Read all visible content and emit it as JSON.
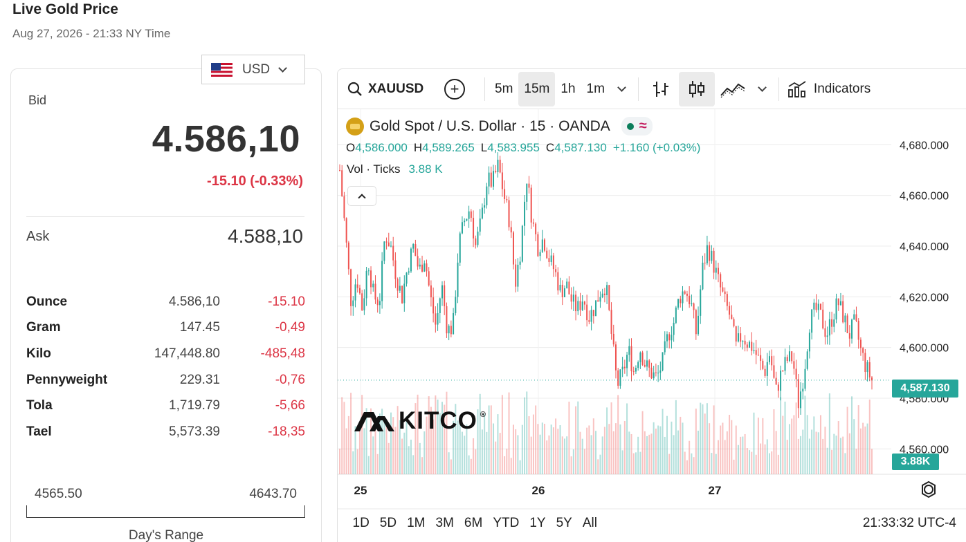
{
  "header": {
    "title": "Live Gold Price",
    "subtitle": "Aug 27, 2026 - 21:33 NY Time"
  },
  "currency": {
    "selected": "USD"
  },
  "quote": {
    "bid_label": "Bid",
    "bid": "4.586,10",
    "change": "-15.10 (-0.33%)",
    "ask_label": "Ask",
    "ask": "4.588,10"
  },
  "units": [
    {
      "name": "Ounce",
      "price": "4.586,10",
      "change": "-15.10"
    },
    {
      "name": "Gram",
      "price": "147.45",
      "change": "-0,49"
    },
    {
      "name": "Kilo",
      "price": "147,448.80",
      "change": "-485,48"
    },
    {
      "name": "Pennyweight",
      "price": "229.31",
      "change": "-0,76"
    },
    {
      "name": "Tola",
      "price": "1,719.79",
      "change": "-5,66"
    },
    {
      "name": "Tael",
      "price": "5,573.39",
      "change": "-18,35"
    }
  ],
  "day_range": {
    "low": "4565.50",
    "high": "4643.70",
    "label": "Day's Range"
  },
  "toolbar": {
    "symbol": "XAUUSD",
    "intervals": [
      "5m",
      "15m",
      "1h",
      "1m"
    ],
    "active_interval": "15m",
    "indicators_label": "Indicators"
  },
  "legend": {
    "title": "Gold Spot / U.S. Dollar · 15 · OANDA",
    "o_label": "O",
    "o": "4,586.000",
    "h_label": "H",
    "h": "4,589.265",
    "l_label": "L",
    "l": "4,583.955",
    "c_label": "C",
    "c": "4,587.130",
    "chg": "+1.160 (+0.03%)",
    "vol_label": "Vol · Ticks",
    "vol": "3.88 K"
  },
  "watermark": "KITCO",
  "chart_data": {
    "type": "candlestick",
    "title": "Gold Spot / U.S. Dollar · 15 · OANDA",
    "x_labels": [
      "25",
      "26",
      "27"
    ],
    "y_ticks": [
      4680,
      4660,
      4640,
      4620,
      4600,
      4580,
      4560
    ],
    "y_tick_labels": [
      "4,680.000",
      "4,660.000",
      "4,640.000",
      "4,620.000",
      "4,600.000",
      "4,580.000",
      "4,560.000"
    ],
    "ylim": [
      4550,
      4694
    ],
    "last_price": 4587.13,
    "last_price_label": "4,587.130",
    "last_volume_label": "3.88K",
    "close_path": [
      4670,
      4645,
      4618,
      4628,
      4615,
      4635,
      4620,
      4618,
      4645,
      4640,
      4628,
      4620,
      4632,
      4640,
      4630,
      4636,
      4620,
      4608,
      4625,
      4607,
      4608,
      4640,
      4650,
      4655,
      4640,
      4650,
      4666,
      4665,
      4672,
      4660,
      4650,
      4625,
      4640,
      4668,
      4650,
      4640,
      4643,
      4635,
      4630,
      4622,
      4625,
      4618,
      4615,
      4620,
      4612,
      4616,
      4622,
      4625,
      4605,
      4585,
      4590,
      4599,
      4590,
      4600,
      4593,
      4590,
      4588,
      4594,
      4605,
      4610,
      4620,
      4623,
      4618,
      4605,
      4630,
      4640,
      4633,
      4625,
      4618,
      4612,
      4600,
      4605,
      4602,
      4600,
      4595,
      4590,
      4598,
      4582,
      4590,
      4595,
      4596,
      4578,
      4590,
      4610,
      4615,
      4612,
      4605,
      4612,
      4618,
      4612,
      4605,
      4610,
      4599,
      4592,
      4587
    ]
  },
  "time_ranges": [
    "1D",
    "5D",
    "1M",
    "3M",
    "6M",
    "YTD",
    "1Y",
    "5Y",
    "All"
  ],
  "clock": "21:33:32 UTC-4",
  "colors": {
    "up": "#26a69a",
    "down": "#ef5350",
    "negative_text": "#dc3545"
  }
}
